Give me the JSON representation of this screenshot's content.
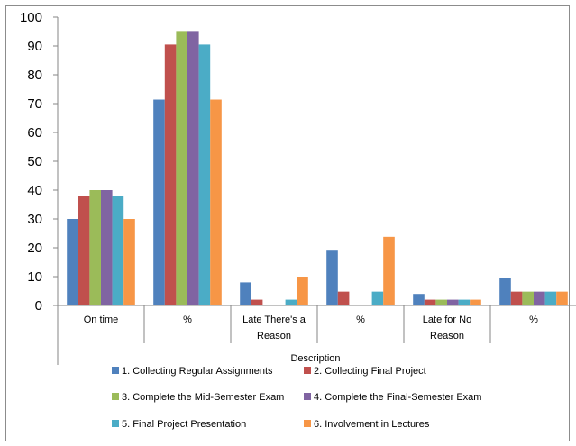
{
  "chart_data": {
    "type": "bar",
    "title": "",
    "xlabel": "Description",
    "ylabel": "",
    "ylim": [
      0,
      100
    ],
    "yticks": [
      0,
      10,
      20,
      30,
      40,
      50,
      60,
      70,
      80,
      90,
      100
    ],
    "grid": false,
    "legend_position": "bottom",
    "categories": [
      [
        "On time"
      ],
      [
        "%"
      ],
      [
        "Late There's a",
        "Reason"
      ],
      [
        "%"
      ],
      [
        "Late for No",
        "Reason"
      ],
      [
        "%"
      ]
    ],
    "series": [
      {
        "name": "1. Collecting Regular Assignments",
        "color": "#4f81bd",
        "values": [
          30,
          71.4,
          8,
          19,
          4,
          9.5
        ]
      },
      {
        "name": "2. Collecting Final Project",
        "color": "#c0504d",
        "values": [
          38,
          90.5,
          2,
          4.8,
          2,
          4.8
        ]
      },
      {
        "name": "3. Complete the Mid-Semester Exam",
        "color": "#9bbb59",
        "values": [
          40,
          95.2,
          0,
          0,
          2,
          4.8
        ]
      },
      {
        "name": "4. Complete the Final-Semester Exam",
        "color": "#8064a2",
        "values": [
          40,
          95.2,
          0,
          0,
          2,
          4.8
        ]
      },
      {
        "name": "5. Final Project Presentation",
        "color": "#4bacc6",
        "values": [
          38,
          90.5,
          2,
          4.8,
          2,
          4.8
        ]
      },
      {
        "name": "6. Involvement in Lectures",
        "color": "#f79646",
        "values": [
          30,
          71.4,
          10,
          23.8,
          2,
          4.8
        ]
      }
    ]
  }
}
